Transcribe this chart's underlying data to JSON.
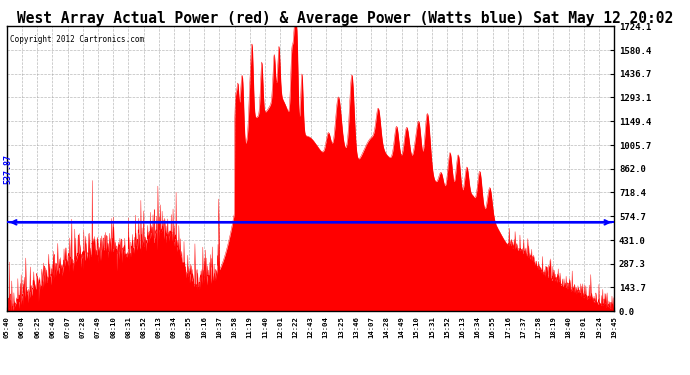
{
  "title": "West Array Actual Power (red) & Average Power (Watts blue) Sat May 12 20:02",
  "copyright": "Copyright 2012 Cartronics.com",
  "avg_power": 537.87,
  "ymax": 1724.1,
  "ymin": 0.0,
  "yticks": [
    0.0,
    143.7,
    287.3,
    431.0,
    574.7,
    718.4,
    862.0,
    1005.7,
    1149.4,
    1293.1,
    1436.7,
    1580.4,
    1724.1
  ],
  "xtick_labels": [
    "05:40",
    "06:04",
    "06:25",
    "06:46",
    "07:07",
    "07:28",
    "07:49",
    "08:10",
    "08:31",
    "08:52",
    "09:13",
    "09:34",
    "09:55",
    "10:16",
    "10:37",
    "10:58",
    "11:19",
    "11:40",
    "12:01",
    "12:22",
    "12:43",
    "13:04",
    "13:25",
    "13:46",
    "14:07",
    "14:28",
    "14:49",
    "15:10",
    "15:31",
    "15:52",
    "16:13",
    "16:34",
    "16:55",
    "17:16",
    "17:37",
    "17:58",
    "18:19",
    "18:40",
    "19:01",
    "19:24",
    "19:45"
  ],
  "bar_color": "#FF0000",
  "line_color": "#0000FF",
  "bg_color": "#FFFFFF",
  "grid_color": "#AAAAAA",
  "title_fontsize": 10.5,
  "annot_fontsize": 6.5
}
